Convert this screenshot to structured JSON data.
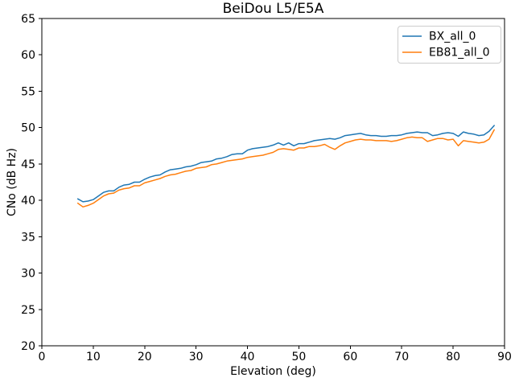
{
  "chart_data": {
    "type": "line",
    "title": "BeiDou L5/E5A",
    "xlabel": "Elevation (deg)",
    "ylabel": "CNo (dB Hz)",
    "xlim": [
      0,
      90
    ],
    "ylim": [
      20,
      65
    ],
    "xticks": [
      0,
      10,
      20,
      30,
      40,
      50,
      60,
      70,
      80,
      90
    ],
    "yticks": [
      20,
      25,
      30,
      35,
      40,
      45,
      50,
      55,
      60,
      65
    ],
    "grid": false,
    "legend_position": "upper right",
    "background": "#ffffff",
    "spine_color": "#000000",
    "x": [
      7,
      8,
      9,
      10,
      11,
      12,
      13,
      14,
      15,
      16,
      17,
      18,
      19,
      20,
      21,
      22,
      23,
      24,
      25,
      26,
      27,
      28,
      29,
      30,
      31,
      32,
      33,
      34,
      35,
      36,
      37,
      38,
      39,
      40,
      41,
      42,
      43,
      44,
      45,
      46,
      47,
      48,
      49,
      50,
      51,
      52,
      53,
      54,
      55,
      56,
      57,
      58,
      59,
      60,
      61,
      62,
      63,
      64,
      65,
      66,
      67,
      68,
      69,
      70,
      71,
      72,
      73,
      74,
      75,
      76,
      77,
      78,
      79,
      80,
      81,
      82,
      83,
      84,
      85,
      86,
      87,
      88
    ],
    "series": [
      {
        "name": "BX_all_0",
        "color": "#1f77b4",
        "values": [
          40.2,
          39.8,
          39.9,
          40.1,
          40.6,
          41.1,
          41.3,
          41.3,
          41.8,
          42.1,
          42.2,
          42.5,
          42.5,
          42.9,
          43.2,
          43.4,
          43.5,
          43.9,
          44.2,
          44.3,
          44.4,
          44.6,
          44.7,
          44.9,
          45.2,
          45.3,
          45.4,
          45.7,
          45.8,
          46.0,
          46.3,
          46.4,
          46.4,
          46.9,
          47.1,
          47.2,
          47.3,
          47.4,
          47.6,
          47.9,
          47.6,
          47.9,
          47.5,
          47.8,
          47.8,
          48.0,
          48.2,
          48.3,
          48.4,
          48.5,
          48.4,
          48.6,
          48.9,
          49.0,
          49.1,
          49.2,
          49.0,
          48.9,
          48.9,
          48.8,
          48.8,
          48.9,
          48.9,
          49.0,
          49.2,
          49.3,
          49.4,
          49.3,
          49.3,
          48.9,
          49.0,
          49.2,
          49.3,
          49.2,
          48.8,
          49.4,
          49.2,
          49.1,
          48.9,
          49.0,
          49.5,
          50.3
        ]
      },
      {
        "name": "EB81_all_0",
        "color": "#ff7f0e",
        "values": [
          39.6,
          39.1,
          39.3,
          39.6,
          40.1,
          40.6,
          40.9,
          41.0,
          41.4,
          41.6,
          41.7,
          42.0,
          42.0,
          42.4,
          42.6,
          42.8,
          43.0,
          43.3,
          43.5,
          43.6,
          43.8,
          44.0,
          44.1,
          44.4,
          44.5,
          44.6,
          44.9,
          45.0,
          45.2,
          45.4,
          45.5,
          45.6,
          45.7,
          45.9,
          46.0,
          46.1,
          46.2,
          46.4,
          46.6,
          47.0,
          47.1,
          47.0,
          46.9,
          47.2,
          47.2,
          47.4,
          47.4,
          47.5,
          47.7,
          47.3,
          47.0,
          47.5,
          47.9,
          48.1,
          48.3,
          48.4,
          48.3,
          48.3,
          48.2,
          48.2,
          48.2,
          48.1,
          48.2,
          48.4,
          48.6,
          48.7,
          48.6,
          48.6,
          48.1,
          48.3,
          48.5,
          48.5,
          48.3,
          48.4,
          47.5,
          48.2,
          48.1,
          48.0,
          47.9,
          48.0,
          48.4,
          49.7
        ]
      }
    ]
  }
}
